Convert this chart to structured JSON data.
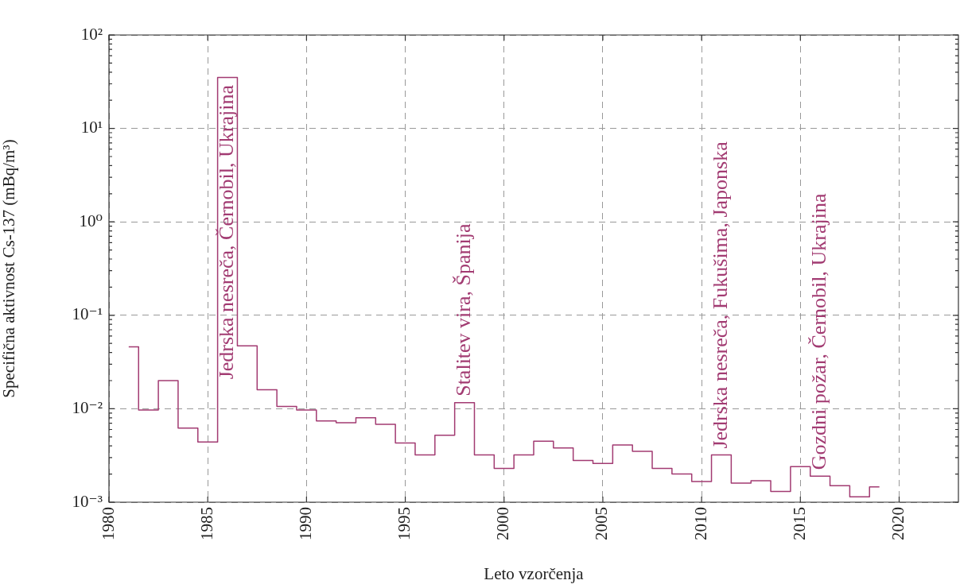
{
  "chart_data": {
    "type": "step",
    "xlabel": "Leto vzorčenja",
    "ylabel": "Specifična aktivnost Cs-137 (mBq/m³)",
    "x": [
      1981,
      1982,
      1983,
      1984,
      1985,
      1986,
      1987,
      1988,
      1989,
      1990,
      1991,
      1992,
      1993,
      1994,
      1995,
      1996,
      1997,
      1998,
      1999,
      2000,
      2001,
      2002,
      2003,
      2004,
      2005,
      2006,
      2007,
      2008,
      2009,
      2010,
      2011,
      2012,
      2013,
      2014,
      2015,
      2016,
      2017,
      2018,
      2019
    ],
    "series": [
      {
        "color": "#a23b72",
        "values": [
          0.046,
          0.0097,
          0.02,
          0.0062,
          0.0044,
          35,
          0.047,
          0.016,
          0.0106,
          0.0097,
          0.0074,
          0.0071,
          0.008,
          0.0068,
          0.0043,
          0.0032,
          0.0052,
          0.0116,
          0.0032,
          0.0023,
          0.0032,
          0.0045,
          0.0038,
          0.0028,
          0.0026,
          0.0041,
          0.0035,
          0.0023,
          0.002,
          0.00166,
          0.0032,
          0.0016,
          0.0017,
          0.0013,
          0.0024,
          0.0019,
          0.0015,
          0.00114,
          0.00146
        ]
      }
    ],
    "xlim": [
      1980,
      2023
    ],
    "xticks": [
      1980,
      1985,
      1990,
      1995,
      2000,
      2005,
      2010,
      2015,
      2020
    ],
    "ylim": [
      0.001,
      100
    ],
    "yticks": [
      {
        "value": 0.001,
        "label": "10⁻³"
      },
      {
        "value": 0.01,
        "label": "10⁻²"
      },
      {
        "value": 0.1,
        "label": "10⁻¹"
      },
      {
        "value": 1,
        "label": "10⁰"
      },
      {
        "value": 10,
        "label": "10¹"
      },
      {
        "value": 100,
        "label": "10²"
      }
    ],
    "log": "y",
    "grid": true,
    "marker": "none",
    "annotations": [
      {
        "text": "Jedrska nesreča, Černobil, Ukrajina",
        "x": 1986,
        "y": 35
      },
      {
        "text": "Stalitev vira, Španija",
        "x": 1998,
        "y": 0.0116
      },
      {
        "text": "Jedrska nesreča, Fukušima, Japonska",
        "x": 2011,
        "y": 0.0032
      },
      {
        "text": "Gozdni požar, Černobil, Ukrajina",
        "x": 2016,
        "y": 0.0019
      }
    ]
  }
}
